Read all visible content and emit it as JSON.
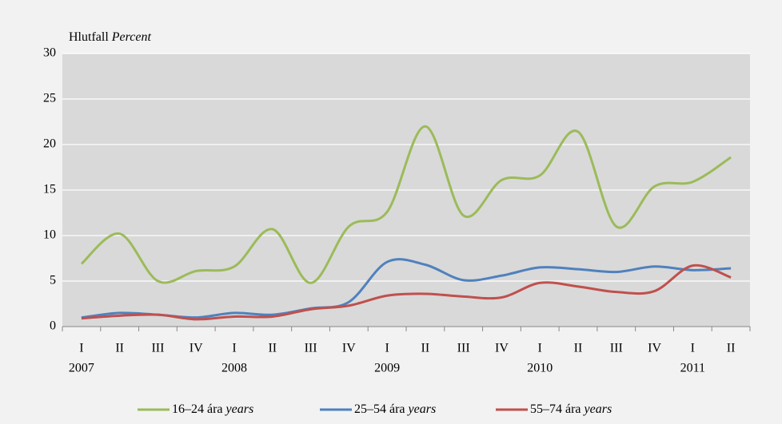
{
  "chart_data": {
    "type": "line",
    "ylabel": "Hlutfall",
    "ylabel_italic": "Percent",
    "categories": [
      [
        "I",
        "2007"
      ],
      [
        "II",
        null
      ],
      [
        "III",
        null
      ],
      [
        "IV",
        null
      ],
      [
        "I",
        "2008"
      ],
      [
        "II",
        null
      ],
      [
        "III",
        null
      ],
      [
        "IV",
        null
      ],
      [
        "I",
        "2009"
      ],
      [
        "II",
        null
      ],
      [
        "III",
        null
      ],
      [
        "IV",
        null
      ],
      [
        "I",
        "2010"
      ],
      [
        "II",
        null
      ],
      [
        "III",
        null
      ],
      [
        "IV",
        null
      ],
      [
        "I",
        "2011"
      ],
      [
        "II",
        null
      ]
    ],
    "series": [
      {
        "name": "16–24 ára",
        "name_italic": "years",
        "color": "#9bbb59",
        "values": [
          6.9,
          10.2,
          5.0,
          6.1,
          6.6,
          10.7,
          4.8,
          11.0,
          12.6,
          22.0,
          12.2,
          16.1,
          16.6,
          21.4,
          11.0,
          15.4,
          15.9,
          18.6
        ]
      },
      {
        "name": "25–54 ára",
        "name_italic": "years",
        "color": "#4f81bd",
        "values": [
          1.0,
          1.5,
          1.3,
          1.0,
          1.5,
          1.3,
          2.0,
          2.7,
          7.1,
          6.8,
          5.1,
          5.6,
          6.5,
          6.3,
          6.0,
          6.6,
          6.2,
          6.4
        ]
      },
      {
        "name": "55–74 ára",
        "name_italic": "years",
        "color": "#c0504d",
        "values": [
          0.9,
          1.2,
          1.3,
          0.8,
          1.1,
          1.1,
          1.9,
          2.3,
          3.4,
          3.6,
          3.3,
          3.2,
          4.8,
          4.4,
          3.8,
          3.9,
          6.7,
          5.4
        ]
      }
    ],
    "ylim": [
      0,
      30
    ],
    "yticks": [
      0,
      5,
      10,
      15,
      20,
      25,
      30
    ],
    "grid": true,
    "smooth": true,
    "legend": "bottom"
  }
}
